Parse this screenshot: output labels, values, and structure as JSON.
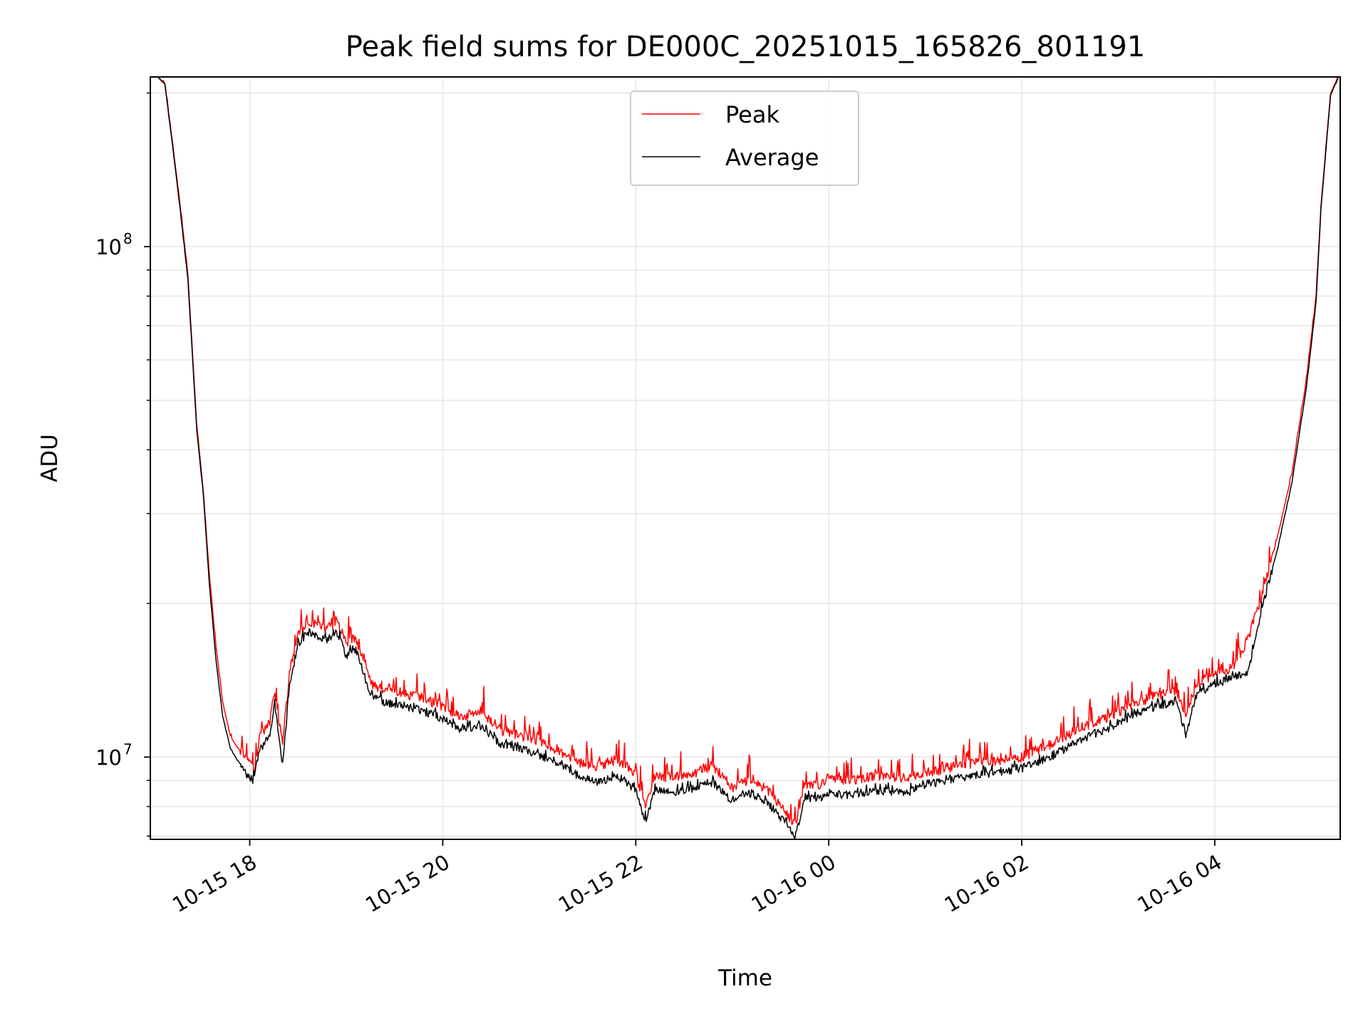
{
  "chart_data": {
    "type": "line",
    "title": "Peak field sums for DE000C_20251015_165826_801191",
    "xlabel": "Time",
    "ylabel": "ADU",
    "yscale": "log",
    "ylim": [
      6900000,
      215000000
    ],
    "xlim_hours": [
      16.97,
      29.3
    ],
    "grid": true,
    "legend_position": "top-center",
    "x_ticks": [
      {
        "hour": 18,
        "label": "10-15 18"
      },
      {
        "hour": 20,
        "label": "10-15 20"
      },
      {
        "hour": 22,
        "label": "10-15 22"
      },
      {
        "hour": 24,
        "label": "10-16 00"
      },
      {
        "hour": 26,
        "label": "10-16 02"
      },
      {
        "hour": 28,
        "label": "10-16 04"
      }
    ],
    "y_ticks": [
      {
        "value": 10000000,
        "base": "10",
        "exp": "7"
      },
      {
        "value": 100000000,
        "base": "10",
        "exp": "8"
      }
    ],
    "x_hours": [
      17.05,
      17.12,
      17.2,
      17.28,
      17.36,
      17.45,
      17.52,
      17.58,
      17.65,
      17.72,
      17.8,
      17.88,
      17.96,
      18.04,
      18.1,
      18.2,
      18.26,
      18.34,
      18.42,
      18.5,
      18.6,
      18.7,
      18.8,
      18.9,
      19.0,
      19.1,
      19.25,
      19.4,
      19.6,
      19.8,
      20.0,
      20.2,
      20.4,
      20.6,
      20.8,
      21.0,
      21.2,
      21.4,
      21.6,
      21.8,
      22.0,
      22.1,
      22.2,
      22.4,
      22.6,
      22.8,
      23.0,
      23.2,
      23.4,
      23.55,
      23.65,
      23.75,
      23.9,
      24.0,
      24.2,
      24.5,
      24.8,
      25.0,
      25.2,
      25.5,
      26.0,
      26.3,
      26.6,
      26.9,
      27.2,
      27.4,
      27.6,
      27.7,
      27.8,
      28.0,
      28.2,
      28.35,
      28.5,
      28.65,
      28.8,
      28.95,
      29.05,
      29.1,
      29.2,
      29.28
    ],
    "series": [
      {
        "name": "Peak",
        "color": "#ff0000",
        "values": [
          215000000,
          208000000,
          160000000,
          120000000,
          88000000,
          45000000,
          33000000,
          23000000,
          16500000,
          12800000,
          11000000,
          10400000,
          10000000,
          9400000,
          10900000,
          11500000,
          13500000,
          10500000,
          15000000,
          17200000,
          18600000,
          18000000,
          17800000,
          18500000,
          16800000,
          17200000,
          14000000,
          13500000,
          13300000,
          13000000,
          12600000,
          12000000,
          12300000,
          11300000,
          11000000,
          10800000,
          10300000,
          9800000,
          9600000,
          9900000,
          9300000,
          7900000,
          9200000,
          9100000,
          9300000,
          9600000,
          8700000,
          9100000,
          8500000,
          7800000,
          7300000,
          8900000,
          8800000,
          9100000,
          9000000,
          9200000,
          9100000,
          9300000,
          9500000,
          9700000,
          10000000,
          10600000,
          11400000,
          12000000,
          12800000,
          13200000,
          13500000,
          12000000,
          13800000,
          14600000,
          15000000,
          17200000,
          21000000,
          27000000,
          36000000,
          55000000,
          80000000,
          120000000,
          200000000,
          215000000
        ]
      },
      {
        "name": "Average",
        "color": "#000000",
        "values": [
          215000000,
          208000000,
          158000000,
          118000000,
          86000000,
          44000000,
          32500000,
          22000000,
          15500000,
          12000000,
          10400000,
          9800000,
          9300000,
          9000000,
          10300000,
          10900000,
          12800000,
          9700000,
          14200000,
          16500000,
          17600000,
          17200000,
          16900000,
          17700000,
          15800000,
          16300000,
          13200000,
          12800000,
          12600000,
          12300000,
          11900000,
          11300000,
          11500000,
          10600000,
          10400000,
          10100000,
          9700000,
          9200000,
          8900000,
          9200000,
          8600000,
          7500000,
          8600000,
          8500000,
          8700000,
          8900000,
          8200000,
          8500000,
          8000000,
          7400000,
          6950000,
          8300000,
          8300000,
          8500000,
          8400000,
          8600000,
          8500000,
          8800000,
          9000000,
          9200000,
          9500000,
          10000000,
          10800000,
          11400000,
          12200000,
          12600000,
          12800000,
          11100000,
          13100000,
          13900000,
          14300000,
          14700000,
          20000000,
          25500000,
          34500000,
          53000000,
          78000000,
          118000000,
          198000000,
          214000000
        ]
      }
    ]
  }
}
